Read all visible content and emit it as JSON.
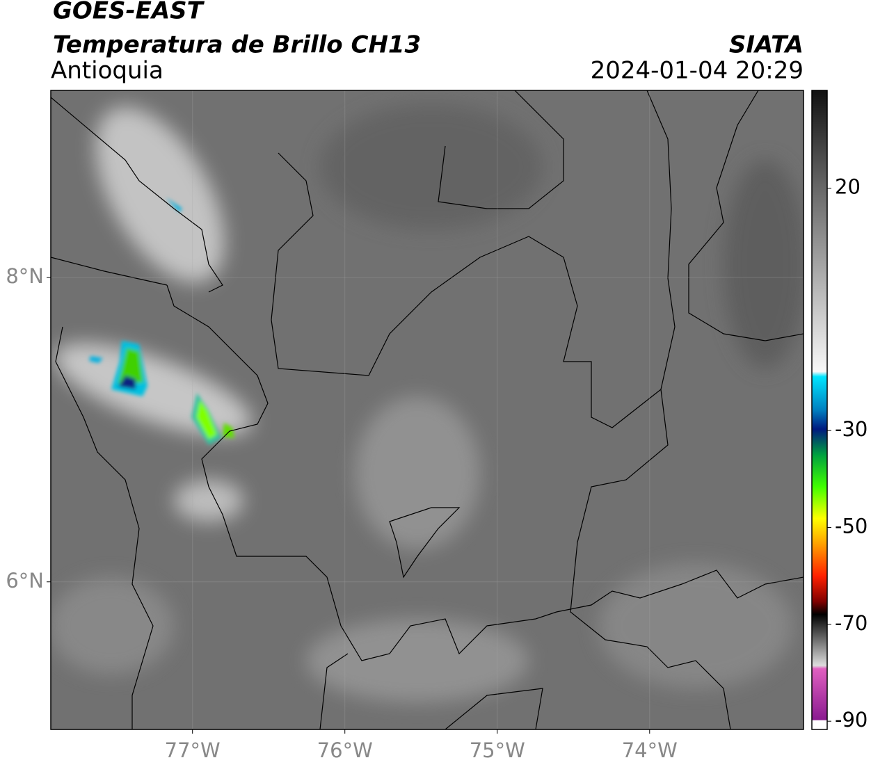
{
  "header": {
    "title": "GOES-EAST",
    "subtitle": "Temperatura de Brillo CH13",
    "region": "Antioquia",
    "source": "SIATA",
    "datetime": "2024-01-04 20:29"
  },
  "map": {
    "lonlim": [
      -77.93,
      -72.99
    ],
    "latlim": [
      5.03,
      9.23
    ],
    "xticks": [
      {
        "value": -77,
        "label": "77°W"
      },
      {
        "value": -76,
        "label": "76°W"
      },
      {
        "value": -75,
        "label": "75°W"
      },
      {
        "value": -74,
        "label": "74°W"
      }
    ],
    "yticks": [
      {
        "value": 6,
        "label": "6°N"
      },
      {
        "value": 8,
        "label": "8°N"
      }
    ],
    "grid": true
  },
  "colorbar": {
    "lim": [
      -91.7,
      40.2
    ],
    "ticks": [
      20,
      -30,
      -50,
      -70,
      -90
    ]
  }
}
